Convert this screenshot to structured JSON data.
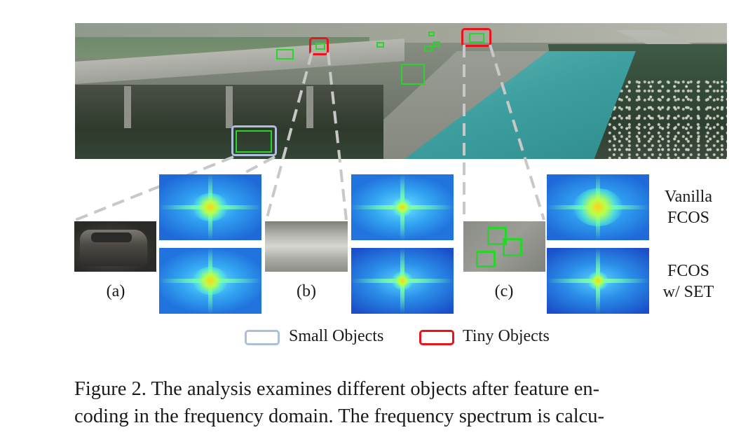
{
  "panels": [
    {
      "label": "(a)",
      "object_type": "small"
    },
    {
      "label": "(b)",
      "object_type": "tiny"
    },
    {
      "label": "(c)",
      "object_type": "tiny"
    }
  ],
  "methods": [
    {
      "line1": "Vanilla",
      "line2": "FCOS"
    },
    {
      "line1": "FCOS",
      "line2": "w/ SET"
    }
  ],
  "legend": [
    {
      "label": "Small Objects",
      "color": "#aebfd9"
    },
    {
      "label": "Tiny Objects",
      "color": "#e8131b"
    }
  ],
  "colors": {
    "detection_box": "#29d42b",
    "dashed_line": "#c8c8c8"
  },
  "caption": {
    "line1": "Figure 2. The analysis examines different objects after feature en-",
    "line2": "coding in the frequency domain. The frequency spectrum is calcu-"
  }
}
